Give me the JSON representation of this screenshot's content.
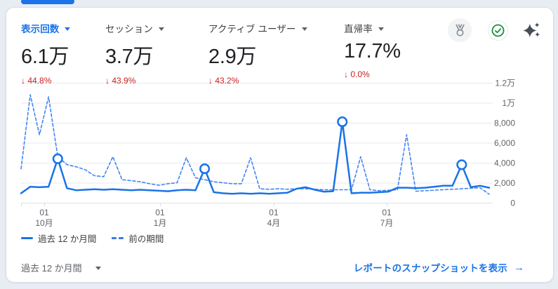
{
  "metrics": [
    {
      "label": "表示回数",
      "value": "6.1万",
      "change": "↓ 44.8%",
      "selected": true
    },
    {
      "label": "セッション",
      "value": "3.7万",
      "change": "↓ 43.9%",
      "selected": false
    },
    {
      "label": "アクティブ ユーザー",
      "value": "2.9万",
      "change": "↓ 43.2%",
      "selected": false
    },
    {
      "label": "直帰率",
      "value": "17.7%",
      "change": "↓ 0.0%",
      "selected": false
    }
  ],
  "header_icons": [
    {
      "name": "medal-icon"
    },
    {
      "name": "check-circle-icon"
    },
    {
      "name": "sparkles-icon"
    }
  ],
  "chart_data": {
    "type": "line",
    "title": "",
    "xlabel": "",
    "ylabel": "",
    "ylim": [
      0,
      12000
    ],
    "grid": true,
    "legend_position": "bottom-left",
    "y_ticks": [
      {
        "value": 0,
        "label": "0"
      },
      {
        "value": 2000,
        "label": "2,000"
      },
      {
        "value": 4000,
        "label": "4,000"
      },
      {
        "value": 6000,
        "label": "6,000"
      },
      {
        "value": 8000,
        "label": "8,000"
      },
      {
        "value": 10000,
        "label": "1万"
      },
      {
        "value": 12000,
        "label": "1.2万"
      }
    ],
    "x_ticks": [
      {
        "pos": 0.0495,
        "label_top": "01",
        "label_bottom": "10月"
      },
      {
        "pos": 0.2969,
        "label_top": "01",
        "label_bottom": "1月"
      },
      {
        "pos": 0.5397,
        "label_top": "01",
        "label_bottom": "4月"
      },
      {
        "pos": 0.7811,
        "label_top": "01",
        "label_bottom": "7月"
      }
    ],
    "series": [
      {
        "name": "過去 12 か月間",
        "style": "solid",
        "color": "#1a73e8",
        "markers": [
          4,
          20,
          35,
          48
        ],
        "values": [
          950,
          1600,
          1550,
          1600,
          4400,
          1450,
          1250,
          1300,
          1350,
          1300,
          1350,
          1300,
          1250,
          1300,
          1250,
          1200,
          1150,
          1250,
          1300,
          1250,
          3400,
          1050,
          950,
          900,
          950,
          900,
          950,
          900,
          950,
          1000,
          1400,
          1550,
          1300,
          1100,
          1150,
          8100,
          950,
          1000,
          1000,
          1050,
          1100,
          1500,
          1500,
          1450,
          1500,
          1600,
          1700,
          1700,
          3800,
          1550,
          1700,
          1500
        ]
      },
      {
        "name": "前の期間",
        "style": "dashed",
        "color": "#4285f4",
        "markers": [],
        "values": [
          3400,
          10800,
          6800,
          10600,
          4600,
          3800,
          3600,
          3300,
          2700,
          2600,
          4600,
          2300,
          2200,
          2100,
          1900,
          1750,
          1900,
          2000,
          4500,
          2500,
          2300,
          2100,
          2000,
          1900,
          1900,
          4500,
          1400,
          1350,
          1400,
          1350,
          1400,
          1400,
          1350,
          1300,
          1300,
          1300,
          1300,
          4600,
          1300,
          1200,
          1250,
          1300,
          6800,
          1150,
          1200,
          1250,
          1300,
          1350,
          1400,
          1450,
          1500,
          850
        ]
      }
    ],
    "colors": {
      "grid": "#e8eaed",
      "zero_line": "#dde1e6",
      "axis_text": "#5f6368"
    }
  },
  "footer": {
    "date_range": "過去 12 か月間",
    "snapshot_link": "レポートのスナップショットを表示",
    "arrow": "→"
  }
}
